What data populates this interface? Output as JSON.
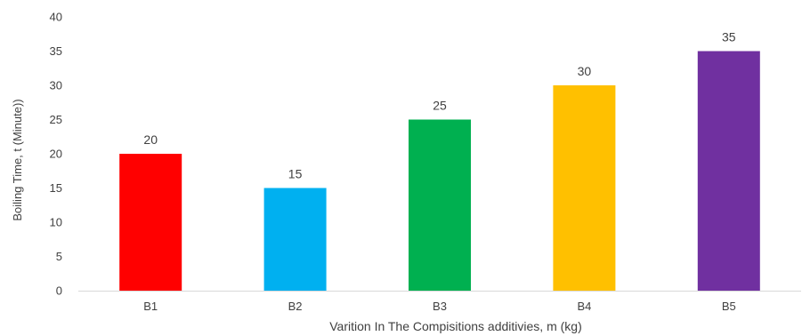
{
  "chart_data": {
    "type": "bar",
    "title": "",
    "xlabel": "Varition In The Compisitions additivies, m (kg)",
    "ylabel": "Boiling Time, t (Minute))",
    "categories": [
      "B1",
      "B2",
      "B3",
      "B4",
      "B5"
    ],
    "values": [
      20,
      15,
      25,
      30,
      35
    ],
    "bar_colors": [
      "#ff0000",
      "#00b0f0",
      "#00b050",
      "#ffc000",
      "#7030a0"
    ],
    "data_labels": [
      "20",
      "15",
      "25",
      "30",
      "35"
    ],
    "ylim": [
      0,
      40
    ],
    "yticks": [
      0,
      5,
      10,
      15,
      20,
      25,
      30,
      35,
      40
    ],
    "ytick_labels": [
      "0",
      "5",
      "10",
      "15",
      "20",
      "25",
      "30",
      "35",
      "40"
    ],
    "grid": false,
    "legend": "none",
    "axis_color": "#d9d9d9",
    "text_color": "#404040"
  }
}
